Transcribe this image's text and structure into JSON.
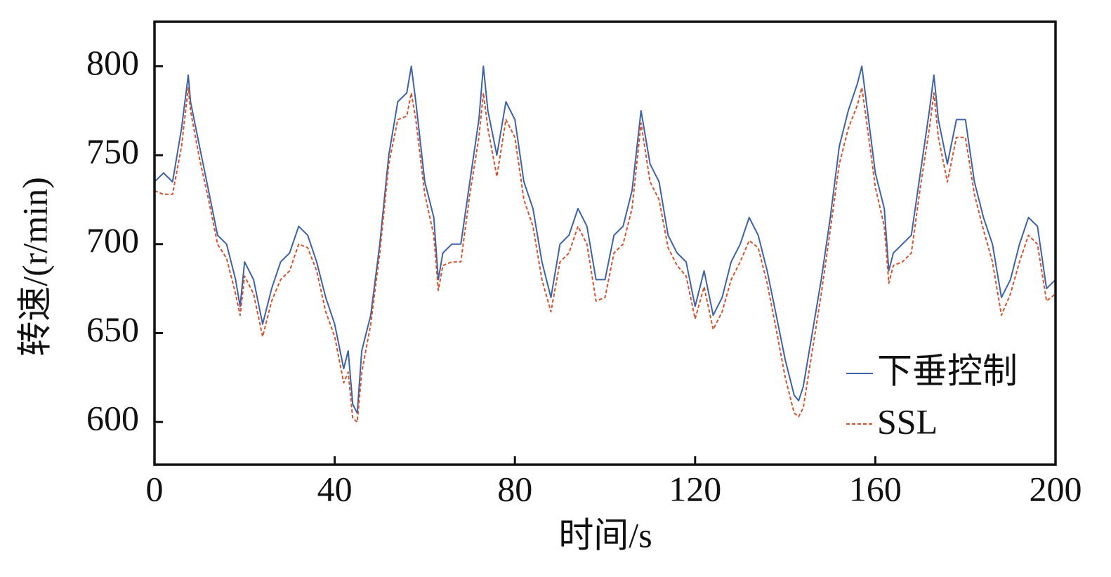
{
  "chart_data": {
    "type": "line",
    "xlabel": "时间/s",
    "ylabel": "转速/(r/min)",
    "x": [
      0,
      2,
      4,
      6,
      7.5,
      8,
      10,
      12,
      14,
      16,
      18,
      19,
      20,
      22,
      24,
      26,
      28,
      30,
      32,
      34,
      36,
      38,
      40,
      42,
      43,
      44,
      45,
      46,
      48,
      50,
      52,
      54,
      56,
      57,
      58,
      60,
      62,
      63,
      64,
      66,
      68,
      70,
      72,
      73,
      74,
      76,
      78,
      80,
      82,
      84,
      86,
      88,
      90,
      92,
      94,
      96,
      98,
      100,
      102,
      104,
      106,
      108,
      110,
      112,
      114,
      116,
      118,
      120,
      122,
      124,
      126,
      128,
      130,
      132,
      134,
      136,
      138,
      140,
      142,
      143,
      144,
      146,
      148,
      150,
      152,
      154,
      156,
      157,
      158,
      160,
      162,
      163,
      164,
      166,
      168,
      170,
      172,
      173,
      174,
      176,
      178,
      180,
      182,
      184,
      186,
      188,
      190,
      192,
      194,
      196,
      198,
      200
    ],
    "series": [
      {
        "name": "下垂控制",
        "color": "#3d62a6",
        "dash": false,
        "values": [
          735,
          740,
          735,
          765,
          795,
          780,
          755,
          730,
          705,
          700,
          680,
          665,
          690,
          680,
          655,
          675,
          690,
          695,
          710,
          705,
          690,
          670,
          655,
          630,
          640,
          610,
          605,
          640,
          660,
          700,
          750,
          780,
          785,
          800,
          780,
          735,
          715,
          680,
          695,
          700,
          700,
          735,
          770,
          800,
          775,
          750,
          780,
          770,
          735,
          720,
          690,
          670,
          700,
          705,
          720,
          710,
          680,
          680,
          705,
          710,
          730,
          775,
          745,
          735,
          705,
          695,
          690,
          665,
          685,
          660,
          670,
          690,
          700,
          715,
          705,
          685,
          660,
          635,
          615,
          612,
          620,
          650,
          680,
          715,
          755,
          775,
          790,
          800,
          780,
          740,
          720,
          685,
          695,
          700,
          705,
          740,
          775,
          795,
          770,
          745,
          770,
          770,
          735,
          715,
          700,
          670,
          680,
          700,
          715,
          710,
          675,
          680
        ]
      },
      {
        "name": "SSL",
        "color": "#d4532d",
        "dash": true,
        "values": [
          730,
          728,
          728,
          755,
          788,
          775,
          748,
          725,
          700,
          692,
          672,
          660,
          682,
          672,
          648,
          668,
          680,
          685,
          700,
          698,
          685,
          662,
          648,
          622,
          628,
          602,
          600,
          628,
          655,
          695,
          745,
          770,
          772,
          785,
          770,
          728,
          705,
          674,
          688,
          690,
          690,
          728,
          760,
          785,
          765,
          738,
          770,
          760,
          725,
          710,
          680,
          662,
          690,
          695,
          710,
          700,
          668,
          670,
          695,
          700,
          720,
          768,
          735,
          725,
          698,
          688,
          682,
          658,
          676,
          652,
          662,
          680,
          690,
          702,
          698,
          678,
          652,
          625,
          605,
          603,
          608,
          640,
          672,
          708,
          745,
          765,
          778,
          788,
          770,
          732,
          710,
          678,
          688,
          690,
          695,
          732,
          765,
          785,
          760,
          735,
          760,
          760,
          728,
          708,
          690,
          660,
          672,
          690,
          705,
          700,
          668,
          672
        ]
      }
    ],
    "xlim": [
      0,
      200
    ],
    "xticks": [
      0,
      40,
      80,
      120,
      160,
      200
    ],
    "ylim": [
      576,
      825
    ],
    "yticks": [
      600,
      650,
      700,
      750,
      800
    ],
    "legend": "lower right"
  }
}
